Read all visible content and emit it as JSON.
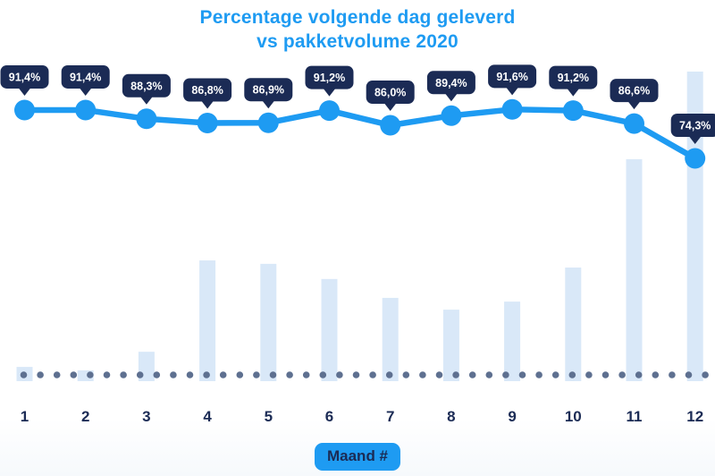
{
  "title": {
    "line1": "Percentage volgende dag geleverd",
    "line2": "vs pakketvolume 2020"
  },
  "xaxis": {
    "label": "Maand #",
    "tick_labels": [
      "1",
      "2",
      "3",
      "4",
      "5",
      "6",
      "7",
      "8",
      "9",
      "10",
      "11",
      "12"
    ]
  },
  "colors": {
    "accent_blue": "#1E9BF2",
    "navy": "#1B2B55",
    "bar_fill": "#D9E8F8",
    "baseline_dot": "#5E7090",
    "bubble_text": "#FFFFFF",
    "background": "#FFFFFF"
  },
  "chart_data": {
    "type": "line+bar combo",
    "title": "Percentage volgende dag geleverd vs pakketvolume 2020",
    "xlabel": "Maand #",
    "ylabel": "",
    "categories": [
      1,
      2,
      3,
      4,
      5,
      6,
      7,
      8,
      9,
      10,
      11,
      12
    ],
    "grid": false,
    "legend": false,
    "series": [
      {
        "name": "Percentage volgende dag geleverd",
        "type": "line",
        "unit": "%",
        "values": [
          91.4,
          91.4,
          88.3,
          86.8,
          86.9,
          91.2,
          86.0,
          89.4,
          91.6,
          91.2,
          86.6,
          74.3
        ],
        "labels": [
          "91,4%",
          "91,4%",
          "88,3%",
          "86,8%",
          "86,9%",
          "91,2%",
          "86,0%",
          "89,4%",
          "91,6%",
          "91,2%",
          "86,6%",
          "74,3%"
        ]
      },
      {
        "name": "Pakketvolume 2020",
        "type": "bar",
        "unit": "relative volume (no value axis shown)",
        "values_relative_to_max": [
          0.046,
          0.035,
          0.095,
          0.39,
          0.379,
          0.33,
          0.269,
          0.231,
          0.257,
          0.367,
          0.717,
          1.0
        ]
      }
    ]
  }
}
